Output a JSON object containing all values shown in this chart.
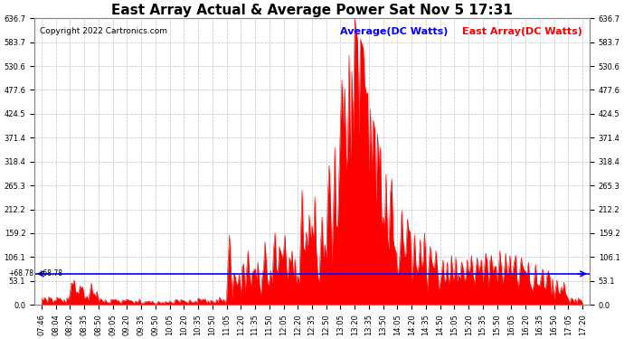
{
  "title": "East Array Actual & Average Power Sat Nov 5 17:31",
  "copyright": "Copyright 2022 Cartronics.com",
  "avg_label": "Average(DC Watts)",
  "east_label": "East Array(DC Watts)",
  "avg_color": "blue",
  "east_color": "red",
  "background_color": "#ffffff",
  "grid_color": "#bbbbbb",
  "ymin": 0.0,
  "ymax": 636.7,
  "avg_value": 68.78,
  "yticks": [
    0.0,
    53.1,
    106.1,
    159.2,
    212.2,
    265.3,
    318.4,
    371.4,
    424.5,
    477.6,
    530.6,
    583.7,
    636.7
  ],
  "xtick_labels": [
    "07:46",
    "08:04",
    "08:20",
    "08:35",
    "08:50",
    "09:05",
    "09:20",
    "09:35",
    "09:50",
    "10:05",
    "10:20",
    "10:35",
    "10:50",
    "11:05",
    "11:20",
    "11:35",
    "11:50",
    "12:05",
    "12:20",
    "12:35",
    "12:50",
    "13:05",
    "13:20",
    "13:35",
    "13:50",
    "14:05",
    "14:20",
    "14:35",
    "14:50",
    "15:05",
    "15:20",
    "15:35",
    "15:50",
    "16:05",
    "16:20",
    "16:35",
    "16:50",
    "17:05",
    "17:20"
  ],
  "title_fontsize": 11,
  "axis_fontsize": 6,
  "legend_fontsize": 8,
  "copyright_fontsize": 6.5
}
